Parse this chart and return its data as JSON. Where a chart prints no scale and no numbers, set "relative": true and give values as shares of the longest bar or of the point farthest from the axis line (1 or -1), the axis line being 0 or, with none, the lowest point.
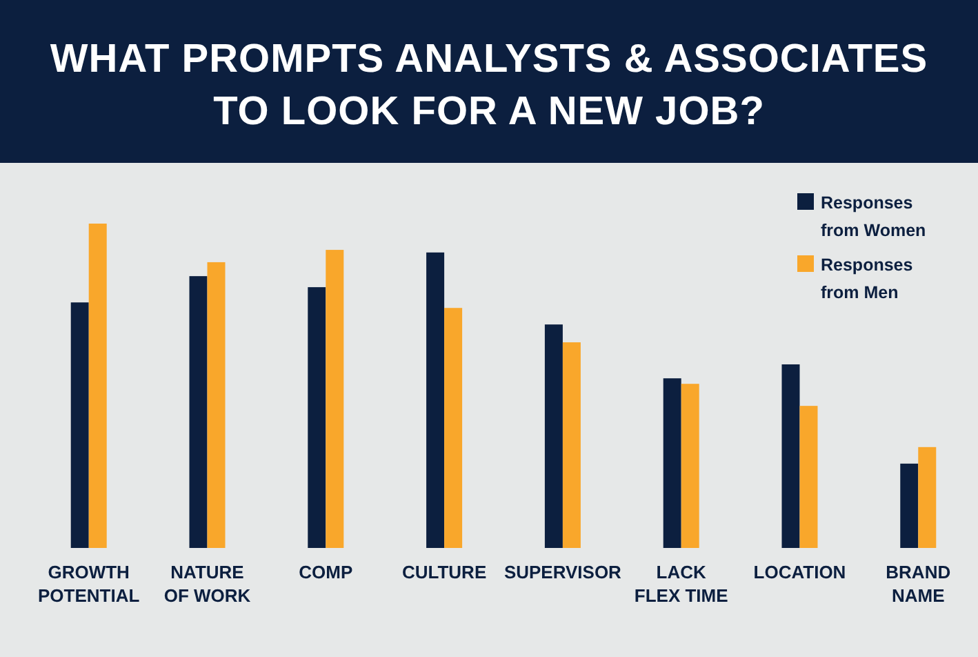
{
  "chart_data": {
    "type": "bar",
    "title": "WHAT PROMPTS ANALYSTS & ASSOCIATES TO LOOK FOR A NEW JOB?",
    "relative": true,
    "legend": "top right",
    "categories": [
      "GROWTH POTENTIAL",
      "NATURE OF WORK",
      "COMP",
      "CULTURE",
      "SUPERVISOR",
      "LACK FLEX TIME",
      "LOCATION",
      "BRAND NAME"
    ],
    "series": [
      {
        "name": "Responses from Women",
        "color": "#0c1f3f",
        "values": [
          0.757,
          0.838,
          0.804,
          0.911,
          0.689,
          0.523,
          0.566,
          0.26
        ]
      },
      {
        "name": "Responses from Men",
        "color": "#f9a72b",
        "values": [
          1,
          0.881,
          0.919,
          0.74,
          0.634,
          0.506,
          0.438,
          0.311
        ]
      }
    ]
  }
}
